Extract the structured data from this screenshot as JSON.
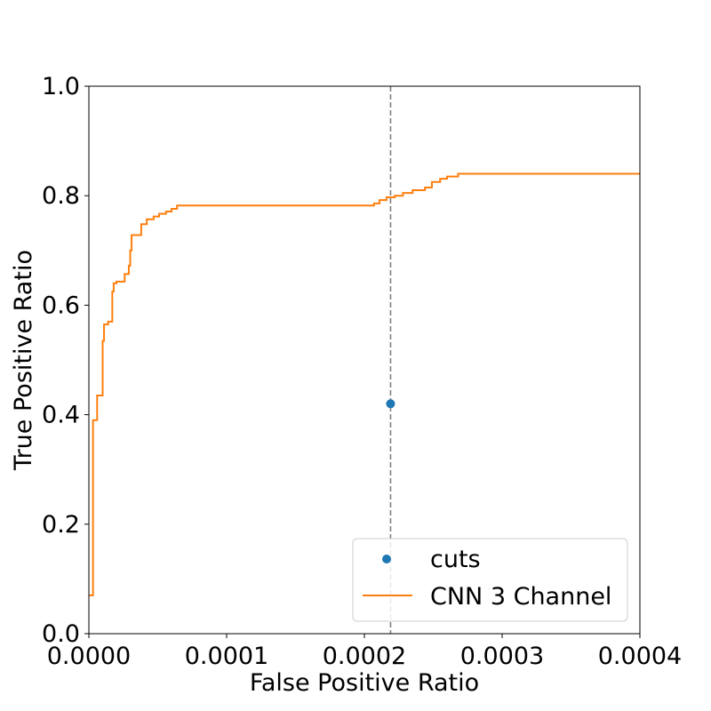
{
  "chart_data": {
    "type": "line",
    "xlabel": "False Positive Ratio",
    "ylabel": "True Positive Ratio",
    "xlim": [
      0.0,
      0.0004
    ],
    "ylim": [
      0.0,
      1.0
    ],
    "x_ticks": [
      "0.0000",
      "0.0001",
      "0.0002",
      "0.0003",
      "0.0004"
    ],
    "y_ticks": [
      "0.0",
      "0.2",
      "0.4",
      "0.6",
      "0.8",
      "1.0"
    ],
    "grid": false,
    "legend_position": "lower-right",
    "vertical_line": {
      "x": 0.000219,
      "style": "dashed",
      "color": "#808080"
    },
    "series": [
      {
        "name": "cuts",
        "kind": "scatter",
        "color": "#1f77b4",
        "points": [
          [
            0.000219,
            0.42
          ]
        ]
      },
      {
        "name": "CNN 3 Channel",
        "kind": "step",
        "color": "#ff7f0e",
        "points": [
          [
            0.0,
            0.07
          ],
          [
            3e-06,
            0.07
          ],
          [
            3e-06,
            0.39
          ],
          [
            6e-06,
            0.39
          ],
          [
            6e-06,
            0.435
          ],
          [
            1e-05,
            0.435
          ],
          [
            1e-05,
            0.535
          ],
          [
            1.1e-05,
            0.535
          ],
          [
            1.1e-05,
            0.565
          ],
          [
            1.4e-05,
            0.565
          ],
          [
            1.4e-05,
            0.57
          ],
          [
            1.7e-05,
            0.57
          ],
          [
            1.7e-05,
            0.625
          ],
          [
            1.8e-05,
            0.625
          ],
          [
            1.8e-05,
            0.64
          ],
          [
            2e-05,
            0.64
          ],
          [
            2e-05,
            0.643
          ],
          [
            2.6e-05,
            0.643
          ],
          [
            2.6e-05,
            0.657
          ],
          [
            2.9e-05,
            0.657
          ],
          [
            2.9e-05,
            0.672
          ],
          [
            3e-05,
            0.672
          ],
          [
            3e-05,
            0.7
          ],
          [
            3.1e-05,
            0.7
          ],
          [
            3.1e-05,
            0.728
          ],
          [
            3.8e-05,
            0.728
          ],
          [
            3.8e-05,
            0.748
          ],
          [
            4.2e-05,
            0.748
          ],
          [
            4.2e-05,
            0.757
          ],
          [
            4.7e-05,
            0.757
          ],
          [
            4.7e-05,
            0.762
          ],
          [
            5.1e-05,
            0.762
          ],
          [
            5.1e-05,
            0.767
          ],
          [
            5.6e-05,
            0.767
          ],
          [
            5.6e-05,
            0.771
          ],
          [
            6e-05,
            0.771
          ],
          [
            6e-05,
            0.776
          ],
          [
            6.4e-05,
            0.776
          ],
          [
            6.4e-05,
            0.782
          ],
          [
            0.000207,
            0.782
          ],
          [
            0.000207,
            0.786
          ],
          [
            0.000211,
            0.786
          ],
          [
            0.000211,
            0.792
          ],
          [
            0.000216,
            0.792
          ],
          [
            0.000216,
            0.797
          ],
          [
            0.000222,
            0.797
          ],
          [
            0.000222,
            0.8
          ],
          [
            0.000228,
            0.8
          ],
          [
            0.000228,
            0.805
          ],
          [
            0.000235,
            0.805
          ],
          [
            0.000235,
            0.81
          ],
          [
            0.000244,
            0.81
          ],
          [
            0.000244,
            0.815
          ],
          [
            0.000249,
            0.815
          ],
          [
            0.000249,
            0.825
          ],
          [
            0.000255,
            0.825
          ],
          [
            0.000255,
            0.831
          ],
          [
            0.00026,
            0.831
          ],
          [
            0.00026,
            0.835
          ],
          [
            0.000268,
            0.835
          ],
          [
            0.000268,
            0.84
          ],
          [
            0.0004,
            0.84
          ]
        ]
      }
    ]
  }
}
